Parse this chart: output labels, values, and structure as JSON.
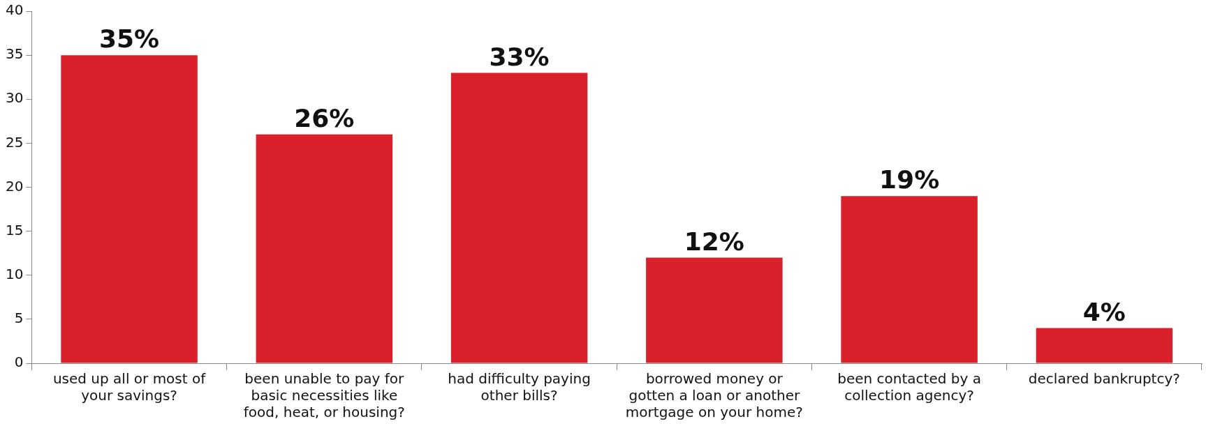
{
  "chart_data": {
    "type": "bar",
    "categories": [
      "used up all or most of your savings?",
      "been unable to pay for basic necessities like food, heat, or housing?",
      "had difficulty paying other bills?",
      "borrowed money or gotten a loan or another mortgage on your home?",
      "been contacted by a collection agency?",
      "declared bankruptcy?"
    ],
    "values": [
      35,
      26,
      33,
      12,
      19,
      4
    ],
    "value_labels": [
      "35%",
      "26%",
      "33%",
      "12%",
      "19%",
      "4%"
    ],
    "color": "#d9202b",
    "ylim": [
      0,
      40
    ],
    "yticks": [
      0,
      5,
      10,
      15,
      20,
      25,
      30,
      35,
      40
    ],
    "grid": false,
    "legend": false
  }
}
